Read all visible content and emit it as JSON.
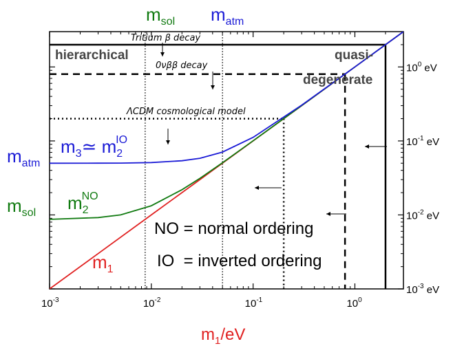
{
  "chart_data": {
    "type": "line",
    "title": "",
    "xlabel": "m1/eV",
    "ylabel": "",
    "xscale": "log",
    "yscale": "log",
    "xlim": [
      0.001,
      3
    ],
    "ylim": [
      0.001,
      3
    ],
    "x_ticks": [
      {
        "base": "10",
        "exp": "-3",
        "value": 0.001
      },
      {
        "base": "10",
        "exp": "-2",
        "value": 0.01
      },
      {
        "base": "10",
        "exp": "-1",
        "value": 0.1
      },
      {
        "base": "10",
        "exp": "0",
        "value": 1
      }
    ],
    "y_ticks_right": [
      {
        "base": "10",
        "exp": "0",
        "unit": "eV",
        "value": 1
      },
      {
        "base": "10",
        "exp": "-1",
        "unit": "eV",
        "value": 0.1
      },
      {
        "base": "10",
        "exp": "-2",
        "unit": "eV",
        "value": 0.01
      },
      {
        "base": "10",
        "exp": "-3",
        "unit": "eV",
        "value": 0.001
      }
    ],
    "series": [
      {
        "name": "m1",
        "color": "#e02020",
        "x": [
          0.001,
          0.003,
          0.01,
          0.03,
          0.1,
          0.3,
          1,
          3
        ],
        "y": [
          0.001,
          0.003,
          0.01,
          0.03,
          0.1,
          0.3,
          1,
          3
        ]
      },
      {
        "name": "m2 NO",
        "color": "#107a10",
        "x": [
          0.001,
          0.003,
          0.005,
          0.01,
          0.02,
          0.03,
          0.05,
          0.1,
          0.3,
          1,
          3
        ],
        "y": [
          0.0087,
          0.0092,
          0.01,
          0.0133,
          0.0219,
          0.0312,
          0.0507,
          0.1004,
          0.3001,
          1,
          3
        ]
      },
      {
        "name": "m3 ≃ m2 IO",
        "color": "#1a1ad6",
        "x": [
          0.001,
          0.003,
          0.005,
          0.01,
          0.02,
          0.03,
          0.05,
          0.1,
          0.3,
          1,
          3
        ],
        "y": [
          0.05,
          0.0501,
          0.0502,
          0.051,
          0.0539,
          0.0583,
          0.0707,
          0.1118,
          0.3041,
          1.0012,
          3.0004
        ]
      }
    ],
    "reference_lines": {
      "m_sol": 0.0087,
      "m_atm": 0.05,
      "tritium_limit": 2,
      "onubb_limit": 0.8,
      "lcdm_limit": 0.2
    },
    "top_labels": {
      "msol_base": "m",
      "msol_sub": "sol",
      "matm_base": "m",
      "matm_sub": "atm"
    },
    "left_labels": {
      "matm_base": "m",
      "matm_sub": "atm",
      "msol_base": "m",
      "msol_sub": "sol"
    },
    "annotations": {
      "tritium": "Tritium β decay",
      "onubb": "0νββ decay",
      "lcdm": "ΛCDM cosmological model",
      "hierarchical": "hierarchical",
      "quasi_line1": "quasi-",
      "quasi_line2": "degenerate",
      "no_def": "NO = normal ordering",
      "io_def": "IO  = inverted ordering"
    },
    "curve_labels": {
      "io": {
        "part1": "m",
        "sub1": "3",
        "mid": "≃ m",
        "sub2": "2",
        "sup2": "IO"
      },
      "no": {
        "base": "m",
        "sub": "2",
        "sup": "NO"
      },
      "m1": {
        "base": "m",
        "sub": "1"
      }
    },
    "xlabel_parts": {
      "base": "m",
      "sub": "1",
      "rest": "/eV"
    }
  }
}
